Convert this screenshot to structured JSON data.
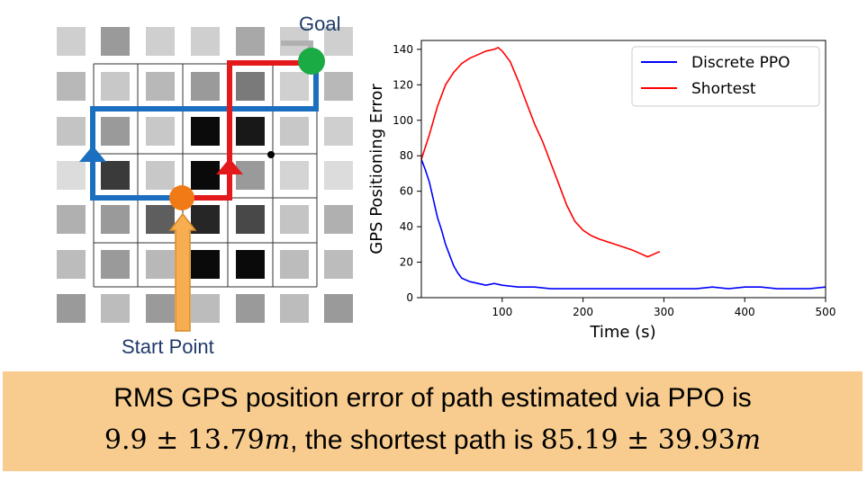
{
  "grid": {
    "goal_label": "Goal",
    "start_label": "Start Point",
    "path_colors": {
      "ppo": "#1a6fc0",
      "shortest": "#e3191b",
      "goal": "#1aab45",
      "start": "#f07b16",
      "arrow": "#f8ad50"
    }
  },
  "chart_data": {
    "type": "line",
    "xlabel": "Time (s)",
    "ylabel": "GPS Positioning Error",
    "xlim": [
      0,
      500
    ],
    "ylim": [
      0,
      145
    ],
    "xticks": [
      100,
      200,
      300,
      400,
      500
    ],
    "yticks": [
      0,
      20,
      40,
      60,
      80,
      100,
      120,
      140
    ],
    "legend_position": "top-right",
    "grid": false,
    "series": [
      {
        "name": "Discrete PPO",
        "color": "#0000ff",
        "x": [
          0,
          5,
          10,
          15,
          20,
          25,
          30,
          35,
          40,
          45,
          50,
          60,
          70,
          80,
          90,
          100,
          120,
          140,
          160,
          180,
          200,
          220,
          240,
          260,
          280,
          300,
          320,
          340,
          360,
          380,
          400,
          420,
          440,
          460,
          480,
          500
        ],
        "y": [
          78,
          72,
          65,
          55,
          45,
          38,
          30,
          24,
          18,
          14,
          11,
          9,
          8,
          7,
          8,
          7,
          6,
          6,
          5,
          5,
          5,
          5,
          5,
          5,
          5,
          5,
          5,
          5,
          6,
          5,
          6,
          6,
          5,
          5,
          5,
          6
        ]
      },
      {
        "name": "Shortest",
        "color": "#ff0000",
        "x": [
          0,
          10,
          20,
          30,
          40,
          50,
          60,
          70,
          80,
          90,
          95,
          100,
          110,
          120,
          130,
          140,
          150,
          160,
          170,
          180,
          190,
          200,
          210,
          220,
          240,
          260,
          280,
          295
        ],
        "y": [
          78,
          92,
          108,
          120,
          127,
          132,
          135,
          137,
          139,
          140,
          141,
          139,
          133,
          122,
          110,
          98,
          88,
          76,
          64,
          52,
          43,
          38,
          35,
          33,
          30,
          27,
          23,
          26
        ]
      }
    ]
  },
  "caption": {
    "line1": "RMS GPS position error of path estimated via PPO is",
    "ppo_mean": "9.9",
    "pm1": "±",
    "ppo_std": "13.79",
    "unit1": "m",
    "middle": ", the shortest path is",
    "short_mean": "85.19",
    "pm2": "±",
    "short_std": "39.93",
    "unit2": "m"
  }
}
